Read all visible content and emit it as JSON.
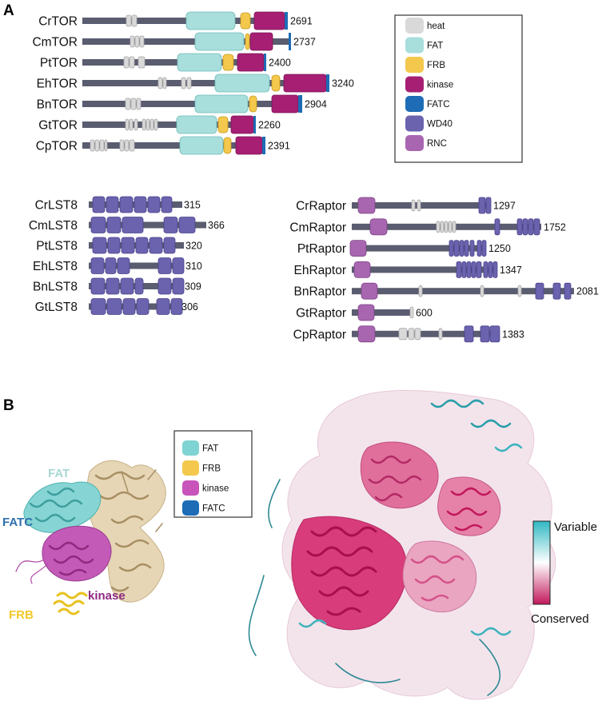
{
  "panels": {
    "a": "A",
    "b": "B"
  },
  "colors": {
    "backbone": "#5a5c70",
    "heat": "#d9d9d9",
    "heat_stroke": "#a8a8a8",
    "FAT": "#a8dedc",
    "FAT_stroke": "#6fbcb8",
    "FRB": "#f3c84c",
    "FRB_stroke": "#c99a1a",
    "kinase": "#a61f73",
    "kinase_stroke": "#7c1555",
    "FATC": "#1d6cb5",
    "WD40": "#6b63ae",
    "WD40_stroke": "#4a438c",
    "RNC": "#a866b0",
    "RNC_stroke": "#7e4486"
  },
  "legend_a": [
    {
      "label": "heat",
      "color": "#d9d9d9"
    },
    {
      "label": "FAT",
      "color": "#a8dedc"
    },
    {
      "label": "FRB",
      "color": "#f3c84c"
    },
    {
      "label": "kinase",
      "color": "#a61f73"
    },
    {
      "label": "FATC",
      "color": "#1d6cb5"
    },
    {
      "label": "WD40",
      "color": "#6b63ae"
    },
    {
      "label": "RNC",
      "color": "#a866b0"
    }
  ],
  "tor": [
    {
      "name": "CrTOR",
      "length": "2691",
      "heat": [
        [
          158,
          164
        ],
        [
          165,
          171
        ]
      ],
      "fat": [
        233,
        294
      ],
      "frb": [
        301,
        313
      ],
      "kinase": [
        318,
        356
      ],
      "fatc": [
        356,
        360
      ],
      "end": 360
    },
    {
      "name": "CmTOR",
      "length": "2737",
      "heat": [
        [
          163,
          168
        ],
        [
          169,
          174
        ],
        [
          175,
          180
        ]
      ],
      "fat": [
        244,
        305
      ],
      "frb": [
        307,
        312
      ],
      "kinase": [
        313,
        341
      ],
      "fatc": [
        361,
        364
      ],
      "end": 364
    },
    {
      "name": "PtTOR",
      "length": "2400",
      "heat": [
        [
          155,
          161
        ],
        [
          162,
          168
        ],
        [
          173,
          181
        ]
      ],
      "fat": [
        222,
        277
      ],
      "frb": [
        279,
        292
      ],
      "kinase": [
        297,
        330
      ],
      "fatc": [
        330,
        333
      ],
      "end": 333
    },
    {
      "name": "EhTOR",
      "length": "3240",
      "heat": [
        [
          198,
          203
        ],
        [
          204,
          208
        ],
        [
          227,
          232
        ],
        [
          234,
          239
        ]
      ],
      "fat": [
        269,
        337
      ],
      "frb": [
        340,
        350
      ],
      "kinase": [
        355,
        408
      ],
      "fatc": [
        408,
        412
      ],
      "end": 412
    },
    {
      "name": "BnTOR",
      "length": "2904",
      "heat": [
        [
          157,
          163
        ],
        [
          164,
          170
        ],
        [
          171,
          176
        ]
      ],
      "fat": [
        244,
        310
      ],
      "frb": [
        312,
        321
      ],
      "kinase": [
        340,
        373
      ],
      "fatc": [
        373,
        378
      ],
      "end": 378
    },
    {
      "name": "GtTOR",
      "length": "2260",
      "heat": [
        [
          157,
          161
        ],
        [
          162,
          166
        ],
        [
          168,
          172
        ],
        [
          178,
          182
        ],
        [
          183,
          187
        ],
        [
          188,
          192
        ],
        [
          193,
          197
        ]
      ],
      "fat": [
        221,
        271
      ],
      "frb": [
        273,
        285
      ],
      "kinase": [
        289,
        317
      ],
      "fatc": [
        317,
        320
      ],
      "end": 320
    },
    {
      "name": "CpTOR",
      "length": "2391",
      "heat": [
        [
          113,
          118
        ],
        [
          119,
          124
        ],
        [
          125,
          130
        ],
        [
          131,
          134
        ],
        [
          150,
          155
        ],
        [
          156,
          161
        ],
        [
          162,
          168
        ]
      ],
      "fat": [
        225,
        279
      ],
      "frb": [
        280,
        289
      ],
      "kinase": [
        295,
        328
      ],
      "fatc": [
        328,
        332
      ],
      "end": 332
    }
  ],
  "lst8": [
    {
      "name": "CrLST8",
      "length": "315",
      "wd40": [
        [
          116,
          131
        ],
        [
          133,
          148
        ],
        [
          150,
          166
        ],
        [
          168,
          183
        ],
        [
          185,
          200
        ],
        [
          202,
          215
        ]
      ],
      "end": 228
    },
    {
      "name": "CmLST8",
      "length": "366",
      "wd40": [
        [
          114,
          132
        ],
        [
          134,
          151
        ],
        [
          153,
          179
        ],
        [
          205,
          222
        ],
        [
          224,
          244
        ]
      ],
      "end": 258
    },
    {
      "name": "PtLST8",
      "length": "320",
      "wd40": [
        [
          116,
          133
        ],
        [
          135,
          150
        ],
        [
          152,
          168
        ],
        [
          170,
          185
        ],
        [
          187,
          203
        ],
        [
          205,
          219
        ]
      ],
      "end": 230
    },
    {
      "name": "EhLST8",
      "length": "310",
      "wd40": [
        [
          114,
          130
        ],
        [
          132,
          145
        ],
        [
          147,
          162
        ],
        [
          198,
          214
        ],
        [
          216,
          230
        ]
      ],
      "end": 230
    },
    {
      "name": "BnLST8",
      "length": "309",
      "wd40": [
        [
          114,
          131
        ],
        [
          133,
          149
        ],
        [
          151,
          167
        ],
        [
          169,
          179
        ],
        [
          198,
          214
        ],
        [
          216,
          230
        ]
      ],
      "end": 229
    },
    {
      "name": "GtLST8",
      "length": "306",
      "wd40": [
        [
          114,
          132
        ],
        [
          134,
          152
        ],
        [
          154,
          169
        ],
        [
          171,
          186
        ],
        [
          196,
          212
        ],
        [
          214,
          228
        ]
      ],
      "end": 225
    }
  ],
  "raptor": [
    {
      "name": "CrRaptor",
      "length": "1297",
      "rnc": [
        448,
        469
      ],
      "heat": [
        [
          515,
          519
        ],
        [
          522,
          526
        ]
      ],
      "wd40": [
        [
          599,
          607
        ],
        [
          608,
          614
        ]
      ],
      "end": 614
    },
    {
      "name": "CmRaptor",
      "length": "1752",
      "rnc": [
        463,
        484
      ],
      "heat": [
        [
          546,
          550
        ],
        [
          551,
          555
        ],
        [
          556,
          560
        ],
        [
          561,
          565
        ],
        [
          566,
          570
        ]
      ],
      "wd40": [
        [
          619,
          625
        ],
        [
          647,
          653
        ],
        [
          654,
          660
        ],
        [
          661,
          667
        ],
        [
          668,
          675
        ]
      ],
      "end": 677
    },
    {
      "name": "PtRaptor",
      "length": "1250",
      "rnc": [
        438,
        458
      ],
      "heat": [],
      "wd40": [
        [
          562,
          567
        ],
        [
          568,
          574
        ],
        [
          575,
          580
        ],
        [
          581,
          586
        ],
        [
          588,
          593
        ],
        [
          597,
          602
        ],
        [
          603,
          608
        ]
      ],
      "end": 608
    },
    {
      "name": "EhRaptor",
      "length": "1347",
      "rnc": [
        443,
        463
      ],
      "heat": [],
      "wd40": [
        [
          571,
          577
        ],
        [
          578,
          583
        ],
        [
          584,
          589
        ],
        [
          590,
          595
        ],
        [
          596,
          602
        ],
        [
          605,
          610
        ],
        [
          611,
          616
        ],
        [
          617,
          622
        ]
      ],
      "end": 622
    },
    {
      "name": "BnRaptor",
      "length": "2081",
      "rnc": [
        452,
        472
      ],
      "heat": [
        [
          524,
          528
        ],
        [
          601,
          605
        ],
        [
          648,
          652
        ]
      ],
      "wd40": [
        [
          670,
          680
        ],
        [
          692,
          701
        ],
        [
          706,
          714
        ]
      ],
      "end": 718
    },
    {
      "name": "GtRaptor",
      "length": "600",
      "rnc": [
        448,
        468
      ],
      "heat": [
        [
          513,
          517
        ]
      ],
      "wd40": [],
      "end": 517
    },
    {
      "name": "CpRaptor",
      "length": "1383",
      "rnc": [
        448,
        469
      ],
      "heat": [
        [
          499,
          509
        ],
        [
          511,
          518
        ],
        [
          519,
          526
        ],
        [
          549,
          553
        ]
      ],
      "wd40": [
        [
          581,
          592
        ],
        [
          601,
          612
        ],
        [
          613,
          625
        ]
      ],
      "end": 625
    }
  ],
  "legend_b": [
    {
      "label": "FAT",
      "color": "#7fd3d2"
    },
    {
      "label": "FRB",
      "color": "#f3c84c"
    },
    {
      "label": "kinase",
      "color": "#c854bb"
    },
    {
      "label": "FATC",
      "color": "#1d6cb5"
    }
  ],
  "structure_labels": {
    "fat": "FAT",
    "fatc": "FATC",
    "frb": "FRB",
    "kinase": "kinase",
    "fat_color": "#a8d8d4",
    "fatc_color": "#2f6fad",
    "frb_color": "#f0c92a",
    "kinase_color": "#8e2a80"
  },
  "colorbar": {
    "top_label": "Variable",
    "bottom_label": "Conserved",
    "top_color": "#2fb8c2",
    "mid_color": "#ffffff",
    "bottom_color": "#c2185b"
  }
}
